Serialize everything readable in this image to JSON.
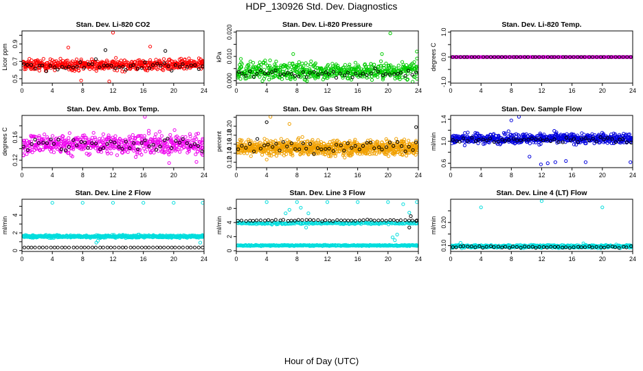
{
  "title": "HDP_130926  Std. Dev. Diagnostics",
  "xlabel": "Hour of Day (UTC)",
  "chart_data": [
    {
      "type": "scatter",
      "title": "Stan. Dev. Li-820 CO2",
      "ylabel": "Licor ppm",
      "xlim": [
        0,
        24
      ],
      "ylim": [
        0.45,
        1.05
      ],
      "xticks": [
        0,
        4,
        8,
        12,
        16,
        20,
        24
      ],
      "yticks": [
        0.5,
        0.6,
        0.7,
        0.8,
        0.9,
        1.0
      ],
      "yticklabels": [
        "0.5",
        "",
        "0.7",
        "",
        "0.9",
        ""
      ],
      "series": [
        {
          "color": "#ff0000",
          "center": 0.66,
          "spread": 0.06,
          "n": 560,
          "outliers": [
            [
              12.0,
              1.03
            ],
            [
              16.9,
              0.87
            ],
            [
              6.1,
              0.86
            ],
            [
              11.5,
              0.47
            ],
            [
              7.8,
              0.48
            ]
          ]
        },
        {
          "color": "#000000",
          "center": 0.65,
          "spread": 0.06,
          "n": 48,
          "outliers": [
            [
              11.0,
              0.83
            ],
            [
              18.9,
              0.82
            ]
          ]
        }
      ]
    },
    {
      "type": "scatter",
      "title": "Stan. Dev. Li-820 Pressure",
      "ylabel": "kPa",
      "xlim": [
        0,
        24
      ],
      "ylim": [
        -0.001,
        0.0205
      ],
      "xticks": [
        0,
        4,
        8,
        12,
        16,
        20,
        24
      ],
      "yticks": [
        0,
        0.005,
        0.01,
        0.015,
        0.02
      ],
      "yticklabels": [
        "0.000",
        "",
        "0.010",
        "",
        "0.020"
      ],
      "series": [
        {
          "color": "#00cc00",
          "center": 0.004,
          "spread": 0.0035,
          "n": 560,
          "outliers": [
            [
              20.3,
              0.0195
            ],
            [
              19.2,
              0.011
            ],
            [
              23.8,
              0.012
            ],
            [
              0.6,
              0.009
            ],
            [
              7.5,
              0.011
            ]
          ]
        },
        {
          "color": "#000000",
          "center": 0.003,
          "spread": 0.0015,
          "n": 48,
          "outliers": []
        }
      ]
    },
    {
      "type": "scatter",
      "title": "Stan. Dev. Li-820 Temp.",
      "ylabel": "degrees C",
      "xlim": [
        0,
        24
      ],
      "ylim": [
        -1.05,
        1.05
      ],
      "xticks": [
        0,
        4,
        8,
        12,
        16,
        20,
        24
      ],
      "yticks": [
        -1.0,
        -0.5,
        0.0,
        0.5,
        1.0
      ],
      "yticklabels": [
        "-1.0",
        "",
        "0.0",
        "",
        "1.0"
      ],
      "series": [
        {
          "color": "#ee00ee",
          "center": 0.0,
          "spread": 0.0,
          "n": 420,
          "outliers": []
        },
        {
          "color": "#000000",
          "center": 0.0,
          "spread": 0.0,
          "n": 48,
          "outliers": []
        }
      ]
    },
    {
      "type": "scatter",
      "title": "Stan. Dev. Amb. Box Temp.",
      "ylabel": "degrees C",
      "xlim": [
        0,
        24
      ],
      "ylim": [
        0.107,
        0.198
      ],
      "xticks": [
        0,
        4,
        8,
        12,
        16,
        20,
        24
      ],
      "yticks": [
        0.12,
        0.14,
        0.16,
        0.18
      ],
      "yticklabels": [
        "0.12",
        "",
        "0.16",
        ""
      ],
      "series": [
        {
          "color": "#ee00ee",
          "center": 0.148,
          "spread": 0.017,
          "n": 560,
          "outliers": [
            [
              16.2,
              0.196
            ],
            [
              19.4,
              0.115
            ],
            [
              23.0,
              0.117
            ]
          ]
        },
        {
          "color": "#000000",
          "center": 0.148,
          "spread": 0.013,
          "n": 48,
          "outliers": []
        }
      ]
    },
    {
      "type": "scatter",
      "title": "Stan. Dev. Gas Stream RH",
      "ylabel": "percent",
      "xlim": [
        0,
        24
      ],
      "ylim": [
        0.108,
        0.224
      ],
      "xticks": [
        0,
        4,
        8,
        12,
        16,
        20,
        24
      ],
      "yticks": [
        0.12,
        0.14,
        0.16,
        0.18,
        0.2,
        0.22
      ],
      "yticklabels": [
        "0.12",
        "0.14",
        "0.16",
        "0.18",
        "0.20",
        ""
      ],
      "series": [
        {
          "color": "#f0a000",
          "center": 0.152,
          "spread": 0.016,
          "n": 900,
          "outliers": [
            [
              4.5,
              0.224
            ],
            [
              4.0,
              0.126
            ],
            [
              7.0,
              0.205
            ]
          ]
        },
        {
          "color": "#000000",
          "center": 0.155,
          "spread": 0.016,
          "n": 48,
          "outliers": [
            [
              4.0,
              0.209
            ],
            [
              23.7,
              0.198
            ]
          ]
        }
      ]
    },
    {
      "type": "scatter",
      "title": "Stan. Dev. Sample Flow",
      "ylabel": "ml/min",
      "xlim": [
        0,
        24
      ],
      "ylim": [
        0.52,
        1.47
      ],
      "xticks": [
        0,
        4,
        8,
        12,
        16,
        20,
        24
      ],
      "yticks": [
        0.6,
        0.8,
        1.0,
        1.2,
        1.4
      ],
      "yticklabels": [
        "0.6",
        "",
        "1.0",
        "",
        "1.4"
      ],
      "series": [
        {
          "color": "#0000dd",
          "center": 1.05,
          "spread": 0.09,
          "n": 600,
          "outliers": [
            [
              9.0,
              1.45
            ],
            [
              8.0,
              1.38
            ],
            [
              11.9,
              0.58
            ],
            [
              13.8,
              0.62
            ],
            [
              15.2,
              0.64
            ],
            [
              17.8,
              0.62
            ],
            [
              23.7,
              0.62
            ],
            [
              10.4,
              0.72
            ],
            [
              12.8,
              0.6
            ]
          ]
        },
        {
          "color": "#000000",
          "center": 1.02,
          "spread": 0.06,
          "n": 48,
          "outliers": []
        }
      ]
    },
    {
      "type": "scatter",
      "title": "Stan. Dev. Line 2 Flow",
      "ylabel": "ml/min",
      "xlim": [
        0,
        24
      ],
      "ylim": [
        -0.1,
        5.8
      ],
      "xticks": [
        0,
        4,
        8,
        12,
        16,
        20,
        24
      ],
      "yticks": [
        0,
        1,
        2,
        3,
        4,
        5
      ],
      "yticklabels": [
        "0",
        "",
        "2",
        "",
        "4",
        ""
      ],
      "series": [
        {
          "color": "#00dddd",
          "center": 1.6,
          "spread": 0.15,
          "n": 560,
          "outliers": [
            [
              4.0,
              5.4
            ],
            [
              8.0,
              5.4
            ],
            [
              12.0,
              5.4
            ],
            [
              16.0,
              5.4
            ],
            [
              20.0,
              5.4
            ],
            [
              23.9,
              5.4
            ],
            [
              9.8,
              0.9
            ],
            [
              10.0,
              1.1
            ],
            [
              23.5,
              0.9
            ]
          ]
        },
        {
          "color": "#000000",
          "center": 0.35,
          "spread": 0.0,
          "n": 48,
          "outliers": []
        }
      ]
    },
    {
      "type": "scatter",
      "title": "Stan. Dev. Line 3 Flow",
      "ylabel": "ml/min",
      "xlim": [
        0,
        24
      ],
      "ylim": [
        -0.1,
        7.3
      ],
      "xticks": [
        0,
        4,
        8,
        12,
        16,
        20,
        24
      ],
      "yticks": [
        0,
        2,
        4,
        6
      ],
      "yticklabels": [
        "0",
        "2",
        "4",
        "6"
      ],
      "series": [
        {
          "color": "#00dddd",
          "center": 0.75,
          "spread": 0.08,
          "n": 400,
          "outliers": [
            [
              4.0,
              6.9
            ],
            [
              8.0,
              6.9
            ],
            [
              12.0,
              6.9
            ],
            [
              16.0,
              6.9
            ],
            [
              20.0,
              6.9
            ],
            [
              23.8,
              6.9
            ],
            [
              6.5,
              5.3
            ],
            [
              7.0,
              5.8
            ],
            [
              8.5,
              6.1
            ],
            [
              9.5,
              5.3
            ],
            [
              9.2,
              3.3
            ],
            [
              20.6,
              1.9
            ],
            [
              20.9,
              1.5
            ],
            [
              21.2,
              2.3
            ],
            [
              22.0,
              6.6
            ],
            [
              22.8,
              5.4
            ]
          ]
        },
        {
          "color": "#00dddd",
          "center": 3.9,
          "spread": 0.15,
          "n": 220,
          "outliers": []
        },
        {
          "color": "#000000",
          "center": 4.3,
          "spread": 0.1,
          "n": 48,
          "outliers": [
            [
              22.8,
              3.3
            ],
            [
              23.0,
              4.9
            ],
            [
              23.8,
              4.3
            ]
          ]
        }
      ]
    },
    {
      "type": "scatter",
      "title": "Stan. Dev. Line 4 (LT) Flow",
      "ylabel": "ml/min",
      "xlim": [
        0,
        24
      ],
      "ylim": [
        0.075,
        0.3
      ],
      "xticks": [
        0,
        4,
        8,
        12,
        16,
        20,
        24
      ],
      "yticks": [
        0.1,
        0.15,
        0.2,
        0.25
      ],
      "yticklabels": [
        "0.10",
        "",
        "0.20",
        ""
      ],
      "series": [
        {
          "color": "#00dddd",
          "center": 0.097,
          "spread": 0.006,
          "n": 560,
          "outliers": [
            [
              4.0,
              0.265
            ],
            [
              12.0,
              0.292
            ],
            [
              20.0,
              0.265
            ],
            [
              1.3,
              0.112
            ],
            [
              17.5,
              0.11
            ]
          ]
        },
        {
          "color": "#000000",
          "center": 0.094,
          "spread": 0.004,
          "n": 48,
          "outliers": []
        }
      ]
    }
  ]
}
